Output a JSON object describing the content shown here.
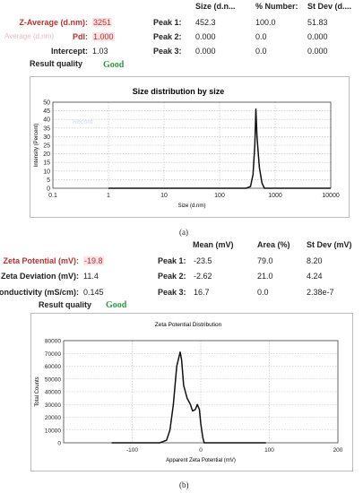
{
  "size_table": {
    "headers": [
      "Size (d.n...",
      "% Number:",
      "St Dev (d...."
    ],
    "rows": [
      {
        "label": "Z-Average (d.nm):",
        "value": "3251",
        "peak": "Peak 1:",
        "cols": [
          "452.3",
          "100.0",
          "51.83"
        ]
      },
      {
        "label": "PdI:",
        "value": "1.000",
        "peak": "Peak 2:",
        "cols": [
          "0.000",
          "0.0",
          "0.000"
        ]
      },
      {
        "label": "Intercept:",
        "value": "1.03",
        "peak": "Peak 3:",
        "cols": [
          "0.000",
          "0.0",
          "0.000"
        ]
      }
    ],
    "faint_label": "Average (d.nm)",
    "quality_label": "Result quality",
    "quality_value": "Good"
  },
  "size_chart_panel": {
    "caption": "(a)"
  },
  "zeta_table": {
    "headers": [
      "Mean (mV)",
      "Area (%)",
      "St Dev (mV)"
    ],
    "rows": [
      {
        "label": "Zeta Potential (mV):",
        "value": "-19.8",
        "peak": "Peak 1:",
        "cols": [
          "-23.5",
          "79.0",
          "8.20"
        ]
      },
      {
        "label": "Zeta Deviation (mV):",
        "value": "11.4",
        "peak": "Peak 2:",
        "cols": [
          "-2.62",
          "21.0",
          "4.24"
        ]
      },
      {
        "label": "Conductivity (mS/cm):",
        "value": "0.145",
        "peak": "Peak 3:",
        "cols": [
          "16.7",
          "0.0",
          "2.38e-7"
        ]
      }
    ],
    "quality_label": "Result quality",
    "quality_value": "Good"
  },
  "zeta_chart_panel": {
    "caption": "(b)"
  },
  "chart_data": [
    {
      "type": "line",
      "title": "Size distribution by size",
      "xlabel": "Size (d.nm)",
      "ylabel": "Intensity (Percent)",
      "xscale": "log",
      "xlim": [
        0.1,
        10000
      ],
      "ylim": [
        0,
        50
      ],
      "xticks": [
        0.1,
        1,
        10,
        100,
        1000,
        10000
      ],
      "xtick_labels": [
        "0.1",
        "1",
        "10",
        "100",
        "1000",
        "10000"
      ],
      "yticks": [
        0,
        5,
        10,
        15,
        20,
        25,
        30,
        35,
        40,
        45,
        50
      ],
      "ytick_labels": [
        "0",
        "5",
        "10",
        "15",
        "20",
        "25",
        "30",
        "35",
        "40",
        "45",
        "50"
      ],
      "grid": true,
      "faint_legend": "Record",
      "series": [
        {
          "x": [
            1,
            100,
            300,
            360,
            400,
            430,
            450,
            470,
            520,
            580,
            640,
            700,
            1000,
            10000
          ],
          "y": [
            0,
            0,
            0,
            1,
            8,
            25,
            46,
            30,
            12,
            3,
            0,
            0,
            0,
            0
          ]
        }
      ]
    },
    {
      "type": "line",
      "title": "Zeta Potential Distribution",
      "xlabel": "Apparent Zeta Potential (mV)",
      "ylabel": "Total Counts",
      "xlim": [
        -200,
        200
      ],
      "ylim": [
        0,
        80000
      ],
      "xticks": [
        -100,
        0,
        100,
        200
      ],
      "xtick_labels": [
        "-100",
        "0",
        "100",
        "200"
      ],
      "yticks": [
        0,
        10000,
        20000,
        30000,
        40000,
        50000,
        60000,
        70000,
        80000
      ],
      "ytick_labels": [
        "0",
        "10000",
        "20000",
        "30000",
        "40000",
        "50000",
        "60000",
        "70000",
        "80000"
      ],
      "grid": true,
      "series": [
        {
          "x": [
            -130,
            -60,
            -50,
            -45,
            -40,
            -35,
            -30,
            -28,
            -25,
            -20,
            -15,
            -12,
            -8,
            -5,
            -2,
            0,
            3,
            5,
            10,
            95
          ],
          "y": [
            0,
            0,
            2000,
            10000,
            30000,
            60000,
            71000,
            65000,
            45000,
            35000,
            30000,
            25000,
            26000,
            30000,
            26000,
            15000,
            4000,
            0,
            0,
            0
          ]
        }
      ]
    }
  ]
}
